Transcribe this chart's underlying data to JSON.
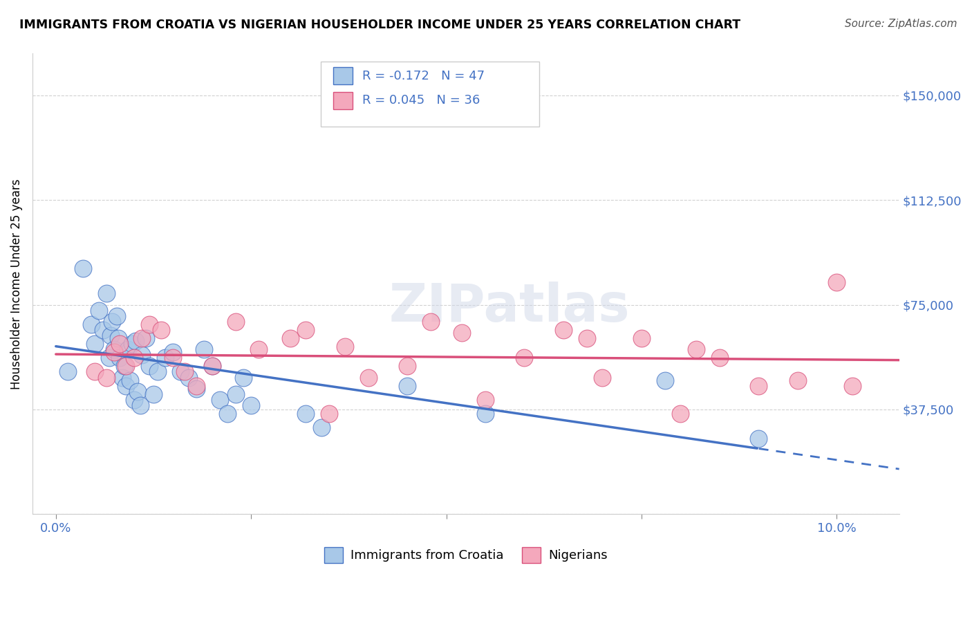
{
  "title": "IMMIGRANTS FROM CROATIA VS NIGERIAN HOUSEHOLDER INCOME UNDER 25 YEARS CORRELATION CHART",
  "source": "Source: ZipAtlas.com",
  "ylabel": "Householder Income Under 25 years",
  "croatia_R": -0.172,
  "croatia_N": 47,
  "nigeria_R": 0.045,
  "nigeria_N": 36,
  "croatia_color": "#a8c8e8",
  "nigeria_color": "#f4a8bc",
  "trendline_croatia_color": "#4472c4",
  "trendline_nigeria_color": "#d94f7a",
  "legend_croatia_label": "Immigrants from Croatia",
  "legend_nigeria_label": "Nigerians",
  "watermark": "ZIPatlas",
  "xlim": [
    -0.3,
    10.8
  ],
  "ylim": [
    0,
    165000
  ],
  "yticks": [
    0,
    37500,
    75000,
    112500,
    150000
  ],
  "ytick_labels": [
    "",
    "$37,500",
    "$75,000",
    "$112,500",
    "$150,000"
  ],
  "croatia_x": [
    0.15,
    0.35,
    0.45,
    0.5,
    0.55,
    0.6,
    0.65,
    0.68,
    0.7,
    0.72,
    0.75,
    0.78,
    0.8,
    0.82,
    0.85,
    0.88,
    0.9,
    0.92,
    0.95,
    0.98,
    1.0,
    1.02,
    1.05,
    1.08,
    1.1,
    1.15,
    1.2,
    1.25,
    1.3,
    1.4,
    1.5,
    1.6,
    1.7,
    1.8,
    1.9,
    2.0,
    2.1,
    2.2,
    2.3,
    2.4,
    2.5,
    3.2,
    3.4,
    4.5,
    5.5,
    7.8,
    9.0
  ],
  "croatia_y": [
    51000,
    88000,
    68000,
    61000,
    73000,
    66000,
    79000,
    56000,
    64000,
    69000,
    59000,
    71000,
    63000,
    56000,
    49000,
    53000,
    46000,
    59000,
    48000,
    61000,
    41000,
    62000,
    44000,
    39000,
    57000,
    63000,
    53000,
    43000,
    51000,
    56000,
    58000,
    51000,
    49000,
    45000,
    59000,
    53000,
    41000,
    36000,
    43000,
    49000,
    39000,
    36000,
    31000,
    46000,
    36000,
    48000,
    27000
  ],
  "nigeria_x": [
    0.5,
    0.65,
    0.75,
    0.82,
    0.9,
    1.0,
    1.1,
    1.2,
    1.35,
    1.5,
    1.65,
    1.8,
    2.0,
    2.3,
    2.6,
    3.0,
    3.5,
    4.0,
    4.5,
    4.8,
    5.5,
    6.0,
    6.5,
    7.0,
    7.5,
    8.0,
    8.5,
    9.0,
    9.5,
    10.0,
    3.2,
    3.7,
    5.2,
    6.8,
    8.2,
    10.2
  ],
  "nigeria_y": [
    51000,
    49000,
    58000,
    61000,
    53000,
    56000,
    63000,
    68000,
    66000,
    56000,
    51000,
    46000,
    53000,
    69000,
    59000,
    63000,
    36000,
    49000,
    53000,
    69000,
    41000,
    56000,
    66000,
    49000,
    63000,
    36000,
    56000,
    46000,
    48000,
    83000,
    66000,
    60000,
    65000,
    63000,
    59000,
    46000
  ]
}
